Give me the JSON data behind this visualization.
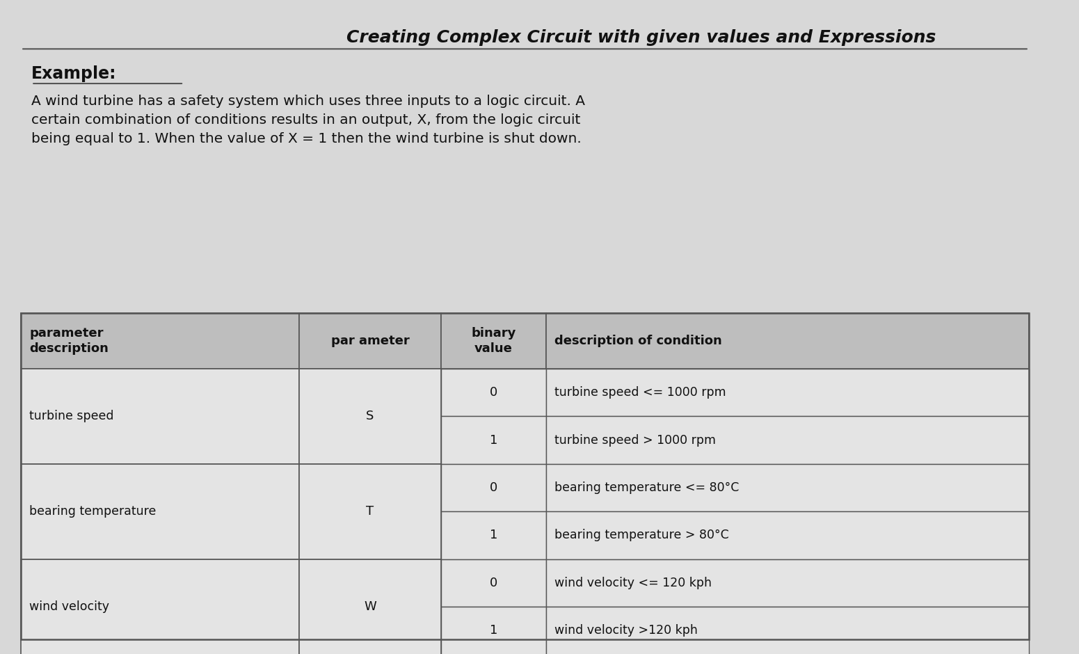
{
  "title": "Creating Complex Circuit with given values and Expressions",
  "example_label": "Example:",
  "paragraph": "A wind turbine has a safety system which uses three inputs to a logic circuit. A\ncertain combination of conditions results in an output, X, from the logic circuit\nbeing equal to 1. When the value of X = 1 then the wind turbine is shut down.",
  "table_headers": [
    "parameter\ndescription",
    "par ameter",
    "binary\nvalue",
    "description of condition"
  ],
  "table_data": [
    [
      "turbine speed",
      "S",
      "0",
      "turbine speed <= 1000 rpm"
    ],
    [
      "",
      "",
      "1",
      "turbine speed > 1000 rpm"
    ],
    [
      "bearing temperature",
      "T",
      "0",
      "bearing temperature <= 80°C"
    ],
    [
      "",
      "",
      "1",
      "bearing temperature > 80°C"
    ],
    [
      "wind velocity",
      "W",
      "0",
      "wind velocity <= 120 kph"
    ],
    [
      "",
      "",
      "1",
      "wind velocity >120 kph"
    ]
  ],
  "bg_color": "#d8d8d8",
  "table_bg": "#e8e8e8",
  "header_bg": "#c8c8c8",
  "line_color": "#555555",
  "text_color": "#111111"
}
